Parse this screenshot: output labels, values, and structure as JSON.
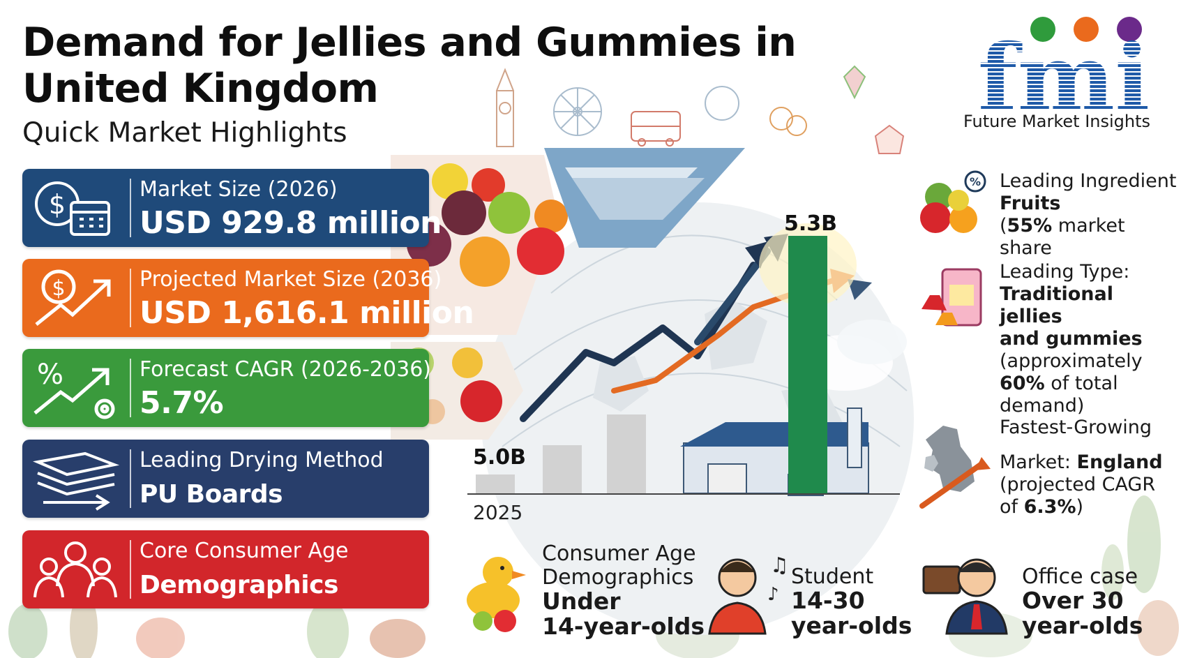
{
  "header": {
    "title_line1": "Demand for Jellies and Gummies in",
    "title_line2": "United Kingdom",
    "subtitle": "Quick Market Highlights"
  },
  "logo": {
    "letters": "fmi",
    "name": "Future Market Insights"
  },
  "cards": [
    {
      "label": "Market Size (2026)",
      "value": "USD 929.8 million",
      "color": "#1f4a7a",
      "icon": "dollar-calendar-icon"
    },
    {
      "label": "Projected Market Size (2036)",
      "value": "USD 1,616.1 million",
      "color": "#ea6a1d",
      "icon": "dollar-growth-arrow-icon"
    },
    {
      "label": "Forecast CAGR (2026-2036)",
      "value": "5.7%",
      "color": "#3a9a3c",
      "icon": "percent-gear-arrow-icon"
    },
    {
      "label": "Leading Drying Method",
      "value": "PU Boards",
      "color": "#283e6b",
      "icon": "layered-boards-icon"
    },
    {
      "label": "Core Consumer Age",
      "value": "Demographics",
      "color": "#d2262b",
      "icon": "family-group-icon"
    }
  ],
  "chart_data": {
    "type": "bar",
    "categories": [
      "2025",
      "",
      "",
      "",
      ""
    ],
    "values": [
      5.0,
      null,
      null,
      null,
      5.3
    ],
    "annotations": [
      "5.0B",
      "5.3B"
    ],
    "xlabel": "2025"
  },
  "right_panel": {
    "ingredient": {
      "line1": "Leading Ingredient",
      "line2": "Fruits",
      "line3_pre": "(",
      "line3_bold": "55%",
      "line3_post": " market share"
    },
    "type": {
      "line1": "Leading Type:",
      "line2": "Traditional jellies",
      "line3": "and gummies",
      "line4": "(approximately",
      "line5_bold": "60%",
      "line5_post": " of total",
      "line6": "demand)"
    },
    "fastest": {
      "line1": "Fastest-Growing",
      "line2_pre": "Market: ",
      "line2_bold": "England",
      "line3": "(projected CAGR",
      "line4_pre": "of ",
      "line4_bold": "6.3%",
      "line4_post": ")"
    }
  },
  "bottom": [
    {
      "line1": "Consumer Age",
      "line2": "Demographics",
      "line3": "Under",
      "line4": "14-year-olds"
    },
    {
      "line1": "Student",
      "line2": "14-30",
      "line3": "year-olds"
    },
    {
      "line1": "Office case",
      "line2": "Over 30",
      "line3": "year-olds"
    }
  ],
  "colors": {
    "navy": "#1f4a7a",
    "orange": "#ea6a1d",
    "green": "#3a9a3c",
    "darkblue": "#283e6b",
    "red": "#d2262b",
    "logo_blue": "#1f5aa8"
  }
}
